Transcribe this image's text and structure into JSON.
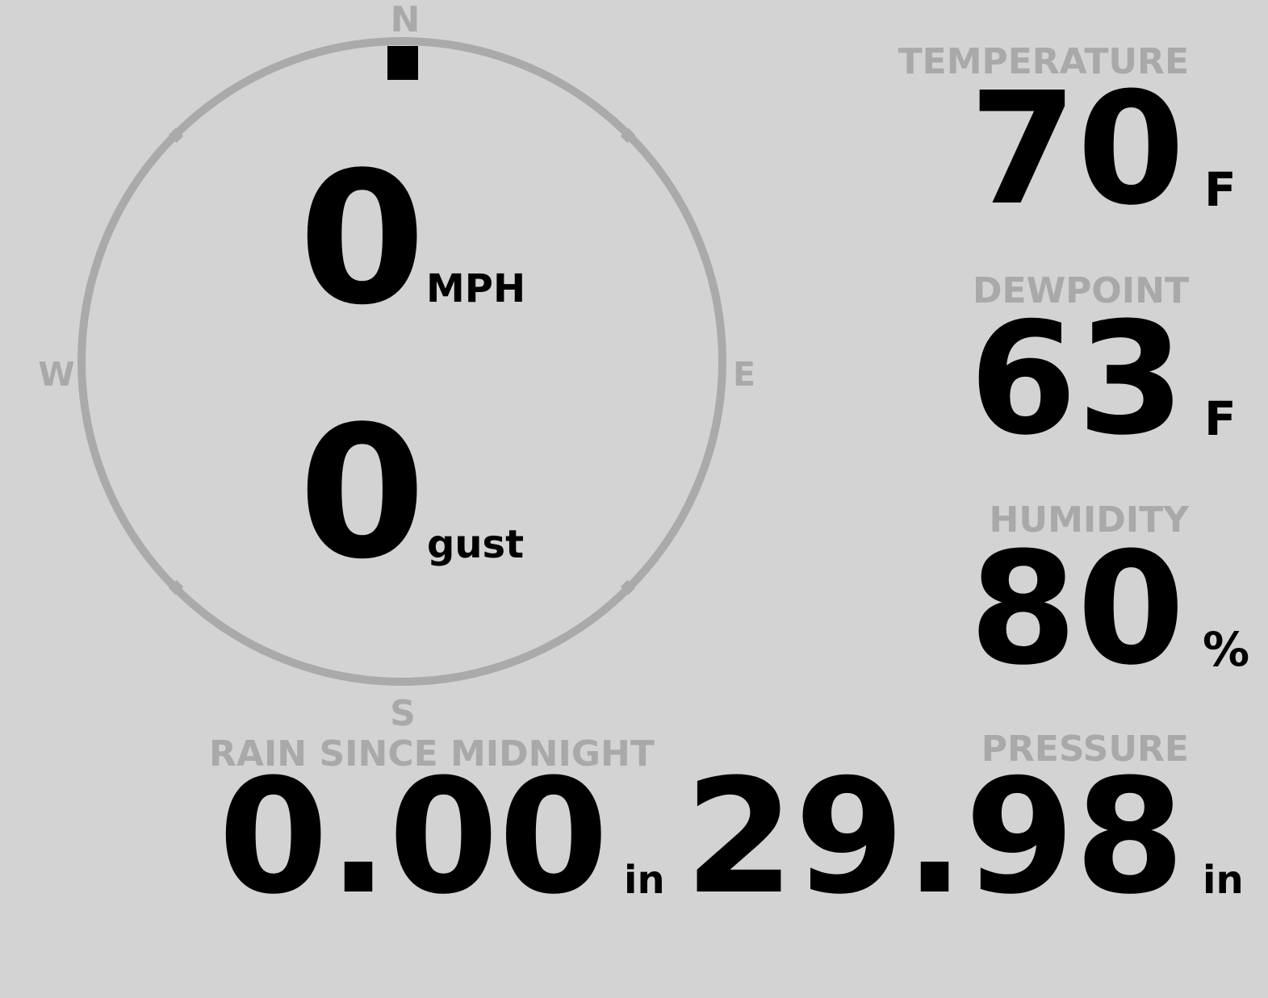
{
  "compass": {
    "north": "N",
    "south": "S",
    "east": "E",
    "west": "W",
    "wind_direction_deg": 0,
    "ring_color": "#aaaaaa",
    "marker_color": "#000000"
  },
  "wind": {
    "speed": "0",
    "speed_unit": "MPH",
    "gust": "0",
    "gust_unit": "gust"
  },
  "temperature": {
    "label": "TEMPERATURE",
    "value": "70",
    "unit": "F"
  },
  "dewpoint": {
    "label": "DEWPOINT",
    "value": "63",
    "unit": "F"
  },
  "humidity": {
    "label": "HUMIDITY",
    "value": "80",
    "unit": "%"
  },
  "rain": {
    "label": "RAIN SINCE MIDNIGHT",
    "value": "0.00",
    "unit": "in"
  },
  "pressure": {
    "label": "PRESSURE",
    "value": "29.98",
    "unit": "in"
  }
}
